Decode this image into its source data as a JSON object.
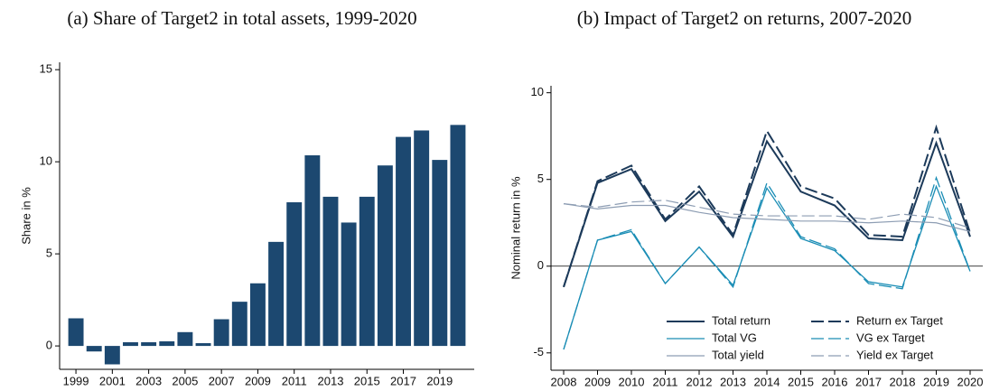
{
  "chart_data": [
    {
      "type": "bar",
      "title": "(a) Share of Target2 in total assets, 1999-2020",
      "ylabel": "Share in %",
      "categories": [
        "1999",
        null,
        "2001",
        null,
        "2003",
        null,
        "2005",
        null,
        "2007",
        null,
        "2009",
        null,
        "2011",
        null,
        "2013",
        null,
        "2015",
        null,
        "2017",
        null,
        "2019",
        null
      ],
      "values": [
        1.5,
        -0.3,
        -1.0,
        0.2,
        0.2,
        0.25,
        0.75,
        0.15,
        1.45,
        2.4,
        3.4,
        5.65,
        7.8,
        10.35,
        8.1,
        6.7,
        8.1,
        9.8,
        11.35,
        11.7,
        10.1,
        12.0
      ],
      "color": "#1c4870",
      "ylim": [
        -1.27,
        15.4
      ],
      "yticks": [
        0,
        5,
        10,
        15
      ],
      "grid": false
    },
    {
      "type": "line",
      "title": "(b) Impact of Target2 on returns, 2007-2020",
      "ylabel": "Nominal return in %",
      "categories": [
        "2008",
        "2009",
        "2010",
        "2011",
        "2012",
        "2013",
        "2014",
        "2015",
        "2016",
        "2017",
        "2018",
        "2019",
        "2020"
      ],
      "series": [
        {
          "name": "Total return",
          "color": "#1c3a5a",
          "line_style": "solid",
          "linewidth": 2,
          "values": [
            -1.2,
            4.8,
            5.6,
            2.6,
            4.3,
            1.7,
            7.2,
            4.3,
            3.5,
            1.6,
            1.5,
            7.1,
            1.7
          ]
        },
        {
          "name": "Return ex Target",
          "color": "#1c3a5a",
          "line_style": "dashed",
          "linewidth": 2,
          "values": [
            -1.2,
            4.9,
            5.8,
            2.7,
            4.6,
            1.8,
            7.8,
            4.6,
            3.9,
            1.8,
            1.7,
            8.0,
            1.9
          ]
        },
        {
          "name": "Total VG",
          "color": "#1a8db5",
          "line_style": "solid",
          "linewidth": 1.3,
          "values": [
            -4.8,
            1.5,
            2.0,
            -1.0,
            1.1,
            -1.1,
            4.5,
            1.6,
            0.9,
            -0.9,
            -1.2,
            4.6,
            -0.3
          ]
        },
        {
          "name": "VG ex Target",
          "color": "#1a8db5",
          "line_style": "dashed",
          "linewidth": 1.3,
          "values": [
            -4.8,
            1.5,
            2.1,
            -1.0,
            1.1,
            -1.2,
            4.8,
            1.7,
            1.0,
            -1.0,
            -1.3,
            5.1,
            -0.3
          ]
        },
        {
          "name": "Total yield",
          "color": "#8d9db3",
          "line_style": "solid",
          "linewidth": 1.2,
          "values": [
            3.6,
            3.3,
            3.5,
            3.5,
            3.1,
            2.8,
            2.7,
            2.6,
            2.6,
            2.5,
            2.6,
            2.5,
            2.0
          ]
        },
        {
          "name": "Yield ex Target",
          "color": "#8d9db3",
          "line_style": "dashed",
          "linewidth": 1.2,
          "values": [
            3.6,
            3.4,
            3.7,
            3.8,
            3.4,
            3.0,
            2.9,
            2.9,
            2.9,
            2.7,
            3.0,
            2.8,
            2.2
          ]
        }
      ],
      "ylim": [
        -6.0,
        10.4
      ],
      "yticks": [
        -5,
        0,
        5,
        10
      ],
      "reference_line": 0,
      "grid": false,
      "legend": "lower right"
    }
  ]
}
